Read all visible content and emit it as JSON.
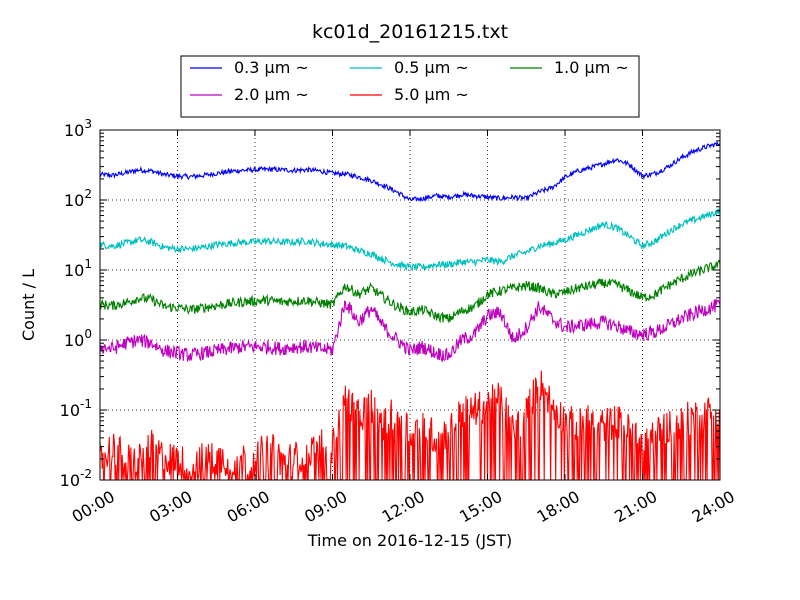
{
  "chart_data": {
    "type": "line",
    "title": "kc01d_20161215.txt",
    "xlabel": "Time on 2016-12-15 (JST)",
    "ylabel": "Count / L",
    "yscale": "log",
    "ylim": [
      0.01,
      1000
    ],
    "xlim": [
      "00:00",
      "24:00"
    ],
    "grid": true,
    "legend_position": "top-center",
    "x_tick_labels": [
      "00:00",
      "03:00",
      "06:00",
      "09:00",
      "12:00",
      "15:00",
      "18:00",
      "21:00",
      "24:00"
    ],
    "y_tick_labels": [
      {
        "base": "10",
        "exp": "-2"
      },
      {
        "base": "10",
        "exp": "-1"
      },
      {
        "base": "10",
        "exp": "0"
      },
      {
        "base": "10",
        "exp": "1"
      },
      {
        "base": "10",
        "exp": "2"
      },
      {
        "base": "10",
        "exp": "3"
      }
    ],
    "x_hours": [
      0,
      0.5,
      1,
      1.5,
      2,
      2.5,
      3,
      3.5,
      4,
      4.5,
      5,
      5.5,
      6,
      6.5,
      7,
      7.5,
      8,
      8.5,
      9,
      9.5,
      10,
      10.5,
      11,
      11.5,
      12,
      12.5,
      13,
      13.5,
      14,
      14.5,
      15,
      15.5,
      16,
      16.5,
      17,
      17.5,
      18,
      18.5,
      19,
      19.5,
      20,
      20.5,
      21,
      21.5,
      22,
      22.5,
      23,
      23.5,
      24
    ],
    "series": [
      {
        "name": "0.3 μm ~",
        "color": "#0000ff",
        "values": [
          230,
          225,
          245,
          270,
          260,
          230,
          220,
          215,
          225,
          240,
          255,
          265,
          270,
          275,
          270,
          265,
          270,
          260,
          240,
          235,
          215,
          190,
          160,
          130,
          100,
          105,
          115,
          110,
          120,
          115,
          110,
          105,
          110,
          105,
          130,
          150,
          210,
          260,
          290,
          330,
          380,
          320,
          220,
          240,
          300,
          400,
          500,
          580,
          650
        ]
      },
      {
        "name": "0.5 μm ~",
        "color": "#00bfbf",
        "values": [
          23,
          22,
          24,
          27,
          25,
          21,
          20,
          20,
          21,
          23,
          24,
          25,
          25,
          26,
          25,
          25,
          26,
          24,
          23,
          22,
          19,
          17,
          14,
          12,
          11,
          11,
          12,
          12,
          13,
          13,
          14,
          13,
          16,
          18,
          22,
          24,
          27,
          32,
          38,
          45,
          40,
          30,
          22,
          26,
          35,
          45,
          52,
          60,
          70
        ]
      },
      {
        "name": "1.0 μm ~",
        "color": "#008000",
        "values": [
          3.2,
          3.1,
          3.4,
          4.0,
          3.8,
          3.0,
          2.9,
          2.7,
          2.9,
          3.1,
          3.3,
          3.5,
          3.6,
          3.7,
          3.5,
          3.6,
          3.7,
          3.4,
          3.2,
          6.0,
          4.5,
          5.5,
          4.0,
          3.0,
          2.5,
          2.7,
          2.2,
          2.0,
          2.6,
          3.0,
          4.5,
          5.0,
          5.5,
          6.0,
          5.5,
          4.5,
          4.8,
          5.5,
          6.0,
          6.5,
          6.2,
          5.0,
          4.0,
          4.5,
          6.0,
          7.5,
          9.0,
          10.5,
          12.0
        ]
      },
      {
        "name": "2.0 μm ~",
        "color": "#bf00bf",
        "values": [
          0.8,
          0.75,
          0.9,
          1.0,
          0.9,
          0.7,
          0.65,
          0.6,
          0.65,
          0.7,
          0.75,
          0.8,
          0.8,
          0.8,
          0.75,
          0.8,
          0.8,
          0.75,
          0.72,
          3.5,
          1.8,
          2.8,
          1.5,
          1.0,
          0.7,
          0.8,
          0.65,
          0.6,
          1.0,
          1.2,
          2.2,
          2.5,
          1.0,
          1.5,
          3.0,
          2.0,
          1.5,
          1.6,
          1.7,
          1.8,
          1.6,
          1.3,
          1.2,
          1.3,
          1.6,
          2.0,
          2.4,
          2.8,
          3.2
        ]
      },
      {
        "name": "5.0 μm ~",
        "color": "#ff0000",
        "values": [
          0.02,
          0.03,
          0.02,
          0.02,
          0.03,
          0.02,
          0.02,
          0.015,
          0.02,
          0.02,
          0.02,
          0.02,
          0.02,
          0.03,
          0.02,
          0.02,
          0.025,
          0.03,
          0.03,
          0.15,
          0.08,
          0.12,
          0.06,
          0.1,
          0.05,
          0.06,
          0.04,
          0.05,
          0.09,
          0.1,
          0.12,
          0.15,
          0.05,
          0.09,
          0.25,
          0.12,
          0.07,
          0.06,
          0.07,
          0.06,
          0.07,
          0.05,
          0.04,
          0.05,
          0.06,
          0.07,
          0.08,
          0.09,
          0.1
        ]
      }
    ]
  }
}
